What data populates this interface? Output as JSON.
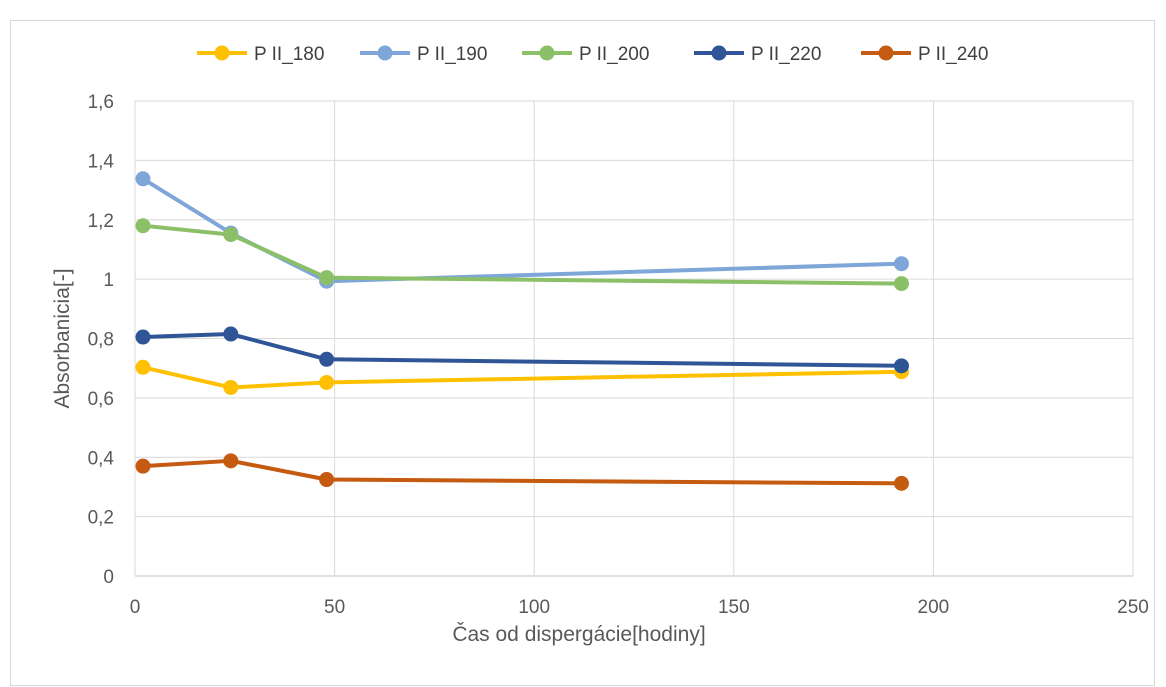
{
  "chart_data": {
    "type": "line",
    "title": "",
    "xlabel": "Čas od dispergácie[hodiny]",
    "ylabel": "Absorbanicia[-]",
    "xlim": [
      0,
      250
    ],
    "ylim": [
      0,
      1.6
    ],
    "x_ticks": [
      0,
      50,
      100,
      150,
      200,
      250
    ],
    "x_tick_labels": [
      "0",
      "50",
      "100",
      "150",
      "200",
      "250"
    ],
    "y_ticks": [
      0,
      0.2,
      0.4,
      0.6,
      0.8,
      1,
      1.2,
      1.4,
      1.6
    ],
    "y_tick_labels": [
      "0",
      "0,2",
      "0,4",
      "0,6",
      "0,8",
      "1",
      "1,2",
      "1,4",
      "1,6"
    ],
    "grid": true,
    "legend_position": "top",
    "x": [
      2,
      24,
      48,
      192
    ],
    "series": [
      {
        "name": "P II_180",
        "color": "#ffc000",
        "values": [
          0.703,
          0.635,
          0.652,
          0.688
        ]
      },
      {
        "name": "P II_190",
        "color": "#7ea6d9",
        "values": [
          1.338,
          1.155,
          0.993,
          1.052
        ]
      },
      {
        "name": "P II_200",
        "color": "#8cc068",
        "values": [
          1.18,
          1.15,
          1.005,
          0.985
        ]
      },
      {
        "name": "P II_220",
        "color": "#2f5597",
        "values": [
          0.805,
          0.815,
          0.73,
          0.708
        ]
      },
      {
        "name": "P II_240",
        "color": "#c55a11",
        "values": [
          0.37,
          0.388,
          0.325,
          0.312
        ]
      }
    ]
  }
}
